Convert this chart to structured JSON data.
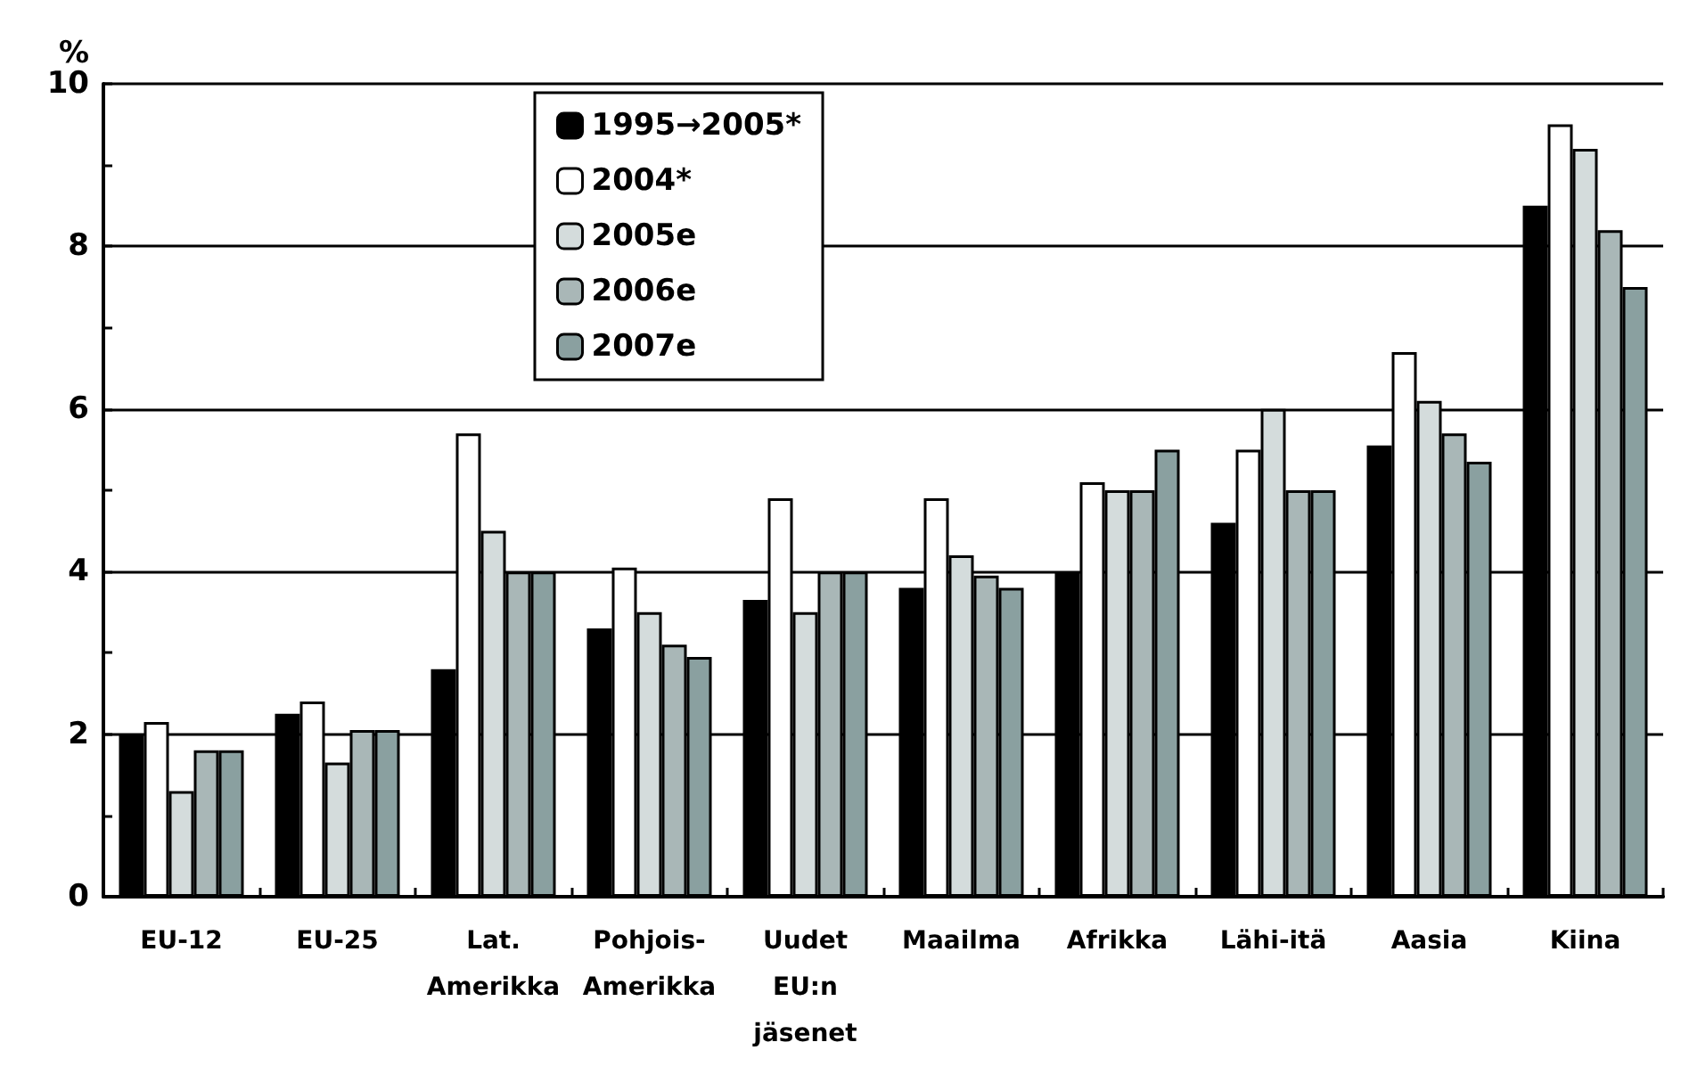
{
  "chart_data": {
    "type": "bar",
    "ylabel": "%",
    "categories": [
      "EU-12",
      "EU-25",
      "Lat.\nAmerikka",
      "Pohjois-\nAmerikka",
      "Uudet\nEU:n\njäsenet",
      "Maailma",
      "Afrikka",
      "Lähi-itä",
      "Aasia",
      "Kiina"
    ],
    "series": [
      {
        "name": "1995→2005*",
        "color": "#000000",
        "values": [
          2.0,
          2.25,
          2.8,
          3.3,
          3.65,
          3.8,
          4.0,
          4.6,
          5.55,
          8.5
        ]
      },
      {
        "name": "2004*",
        "color": "#ffffff",
        "values": [
          2.15,
          2.4,
          5.7,
          4.05,
          4.9,
          4.9,
          5.1,
          5.5,
          6.7,
          9.5
        ]
      },
      {
        "name": "2005e",
        "color": "#d4dcdc",
        "values": [
          1.3,
          1.65,
          4.5,
          3.5,
          3.5,
          4.2,
          5.0,
          6.0,
          6.1,
          9.2
        ]
      },
      {
        "name": "2006e",
        "color": "#a9b7b7",
        "values": [
          1.8,
          2.05,
          4.0,
          3.1,
          4.0,
          3.95,
          5.0,
          5.0,
          5.7,
          8.2
        ]
      },
      {
        "name": "2007e",
        "color": "#8aa0a0",
        "values": [
          1.8,
          2.05,
          4.0,
          2.95,
          4.0,
          3.8,
          5.5,
          5.0,
          5.35,
          7.5
        ]
      }
    ],
    "ylim": [
      0,
      10
    ],
    "yticks": [
      0,
      {
        "value": 1,
        "label": null
      },
      2,
      {
        "value": 3,
        "label": null
      },
      4,
      {
        "value": 5,
        "label": null
      },
      6,
      {
        "value": 7,
        "label": null
      },
      8,
      {
        "value": 9,
        "label": null
      },
      10
    ],
    "grid": "y",
    "legend": "top"
  }
}
